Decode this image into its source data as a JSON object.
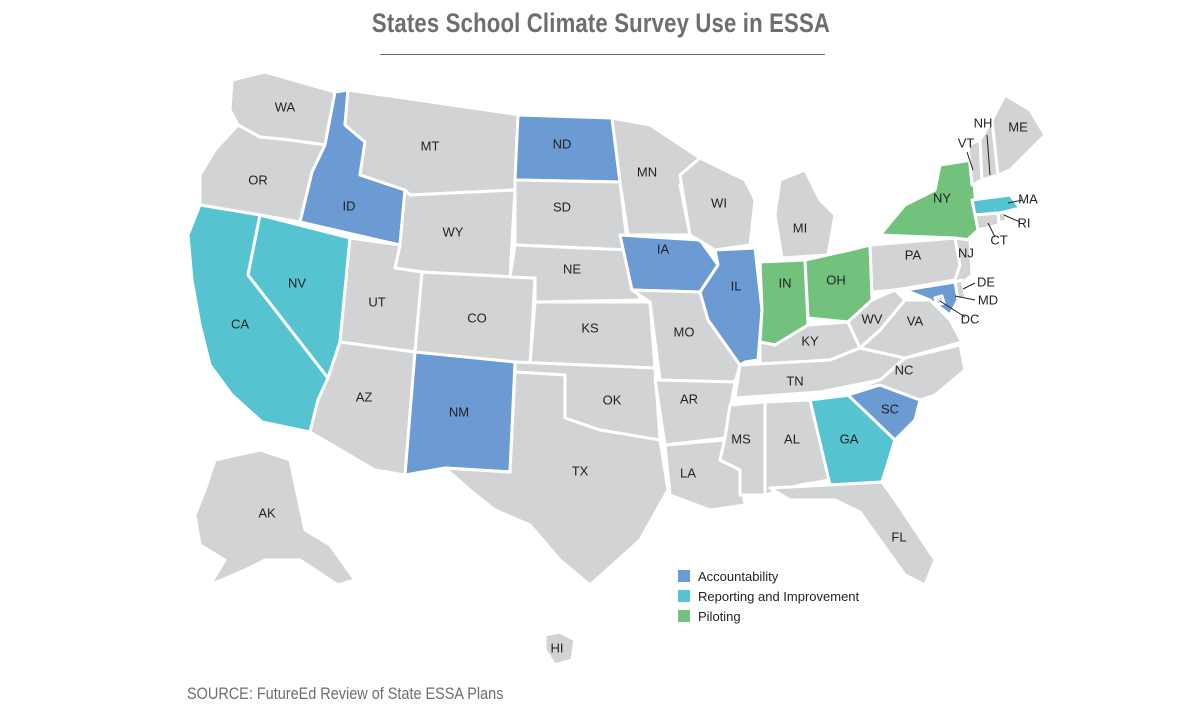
{
  "title": "States School Climate Survey Use in ESSA",
  "source": "SOURCE: FutureEd Review of State ESSA Plans",
  "colors": {
    "default": "#d1d3d4",
    "accountability": "#6b9bd2",
    "reporting": "#56c4d0",
    "piloting": "#72c17d"
  },
  "legend": [
    {
      "label": "Accountability",
      "category": "accountability"
    },
    {
      "label": "Reporting and Improvement",
      "category": "reporting"
    },
    {
      "label": "Piloting",
      "category": "piloting"
    }
  ],
  "states": {
    "WA": "WA",
    "OR": "OR",
    "CA": "CA",
    "NV": "NV",
    "ID": "ID",
    "MT": "MT",
    "WY": "WY",
    "UT": "UT",
    "AZ": "AZ",
    "CO": "CO",
    "NM": "NM",
    "ND": "ND",
    "SD": "SD",
    "NE": "NE",
    "KS": "KS",
    "OK": "OK",
    "TX": "TX",
    "MN": "MN",
    "IA": "IA",
    "MO": "MO",
    "AR": "AR",
    "LA": "LA",
    "WI": "WI",
    "IL": "IL",
    "MI": "MI",
    "IN": "IN",
    "OH": "OH",
    "KY": "KY",
    "TN": "TN",
    "MS": "MS",
    "AL": "AL",
    "GA": "GA",
    "FL": "FL",
    "SC": "SC",
    "NC": "NC",
    "VA": "VA",
    "WV": "WV",
    "PA": "PA",
    "NY": "NY",
    "VT": "VT",
    "NH": "NH",
    "ME": "ME",
    "MA": "MA",
    "RI": "RI",
    "CT": "CT",
    "NJ": "NJ",
    "DE": "DE",
    "MD": "MD",
    "DC": "DC",
    "AK": "AK",
    "HI": "HI"
  },
  "categories": {
    "ID": "accountability",
    "ND": "accountability",
    "IA": "accountability",
    "IL": "accountability",
    "NM": "accountability",
    "SC": "accountability",
    "MD": "accountability",
    "CA": "reporting",
    "NV": "reporting",
    "GA": "reporting",
    "MA": "reporting",
    "NY": "piloting",
    "IN": "piloting",
    "OH": "piloting"
  }
}
